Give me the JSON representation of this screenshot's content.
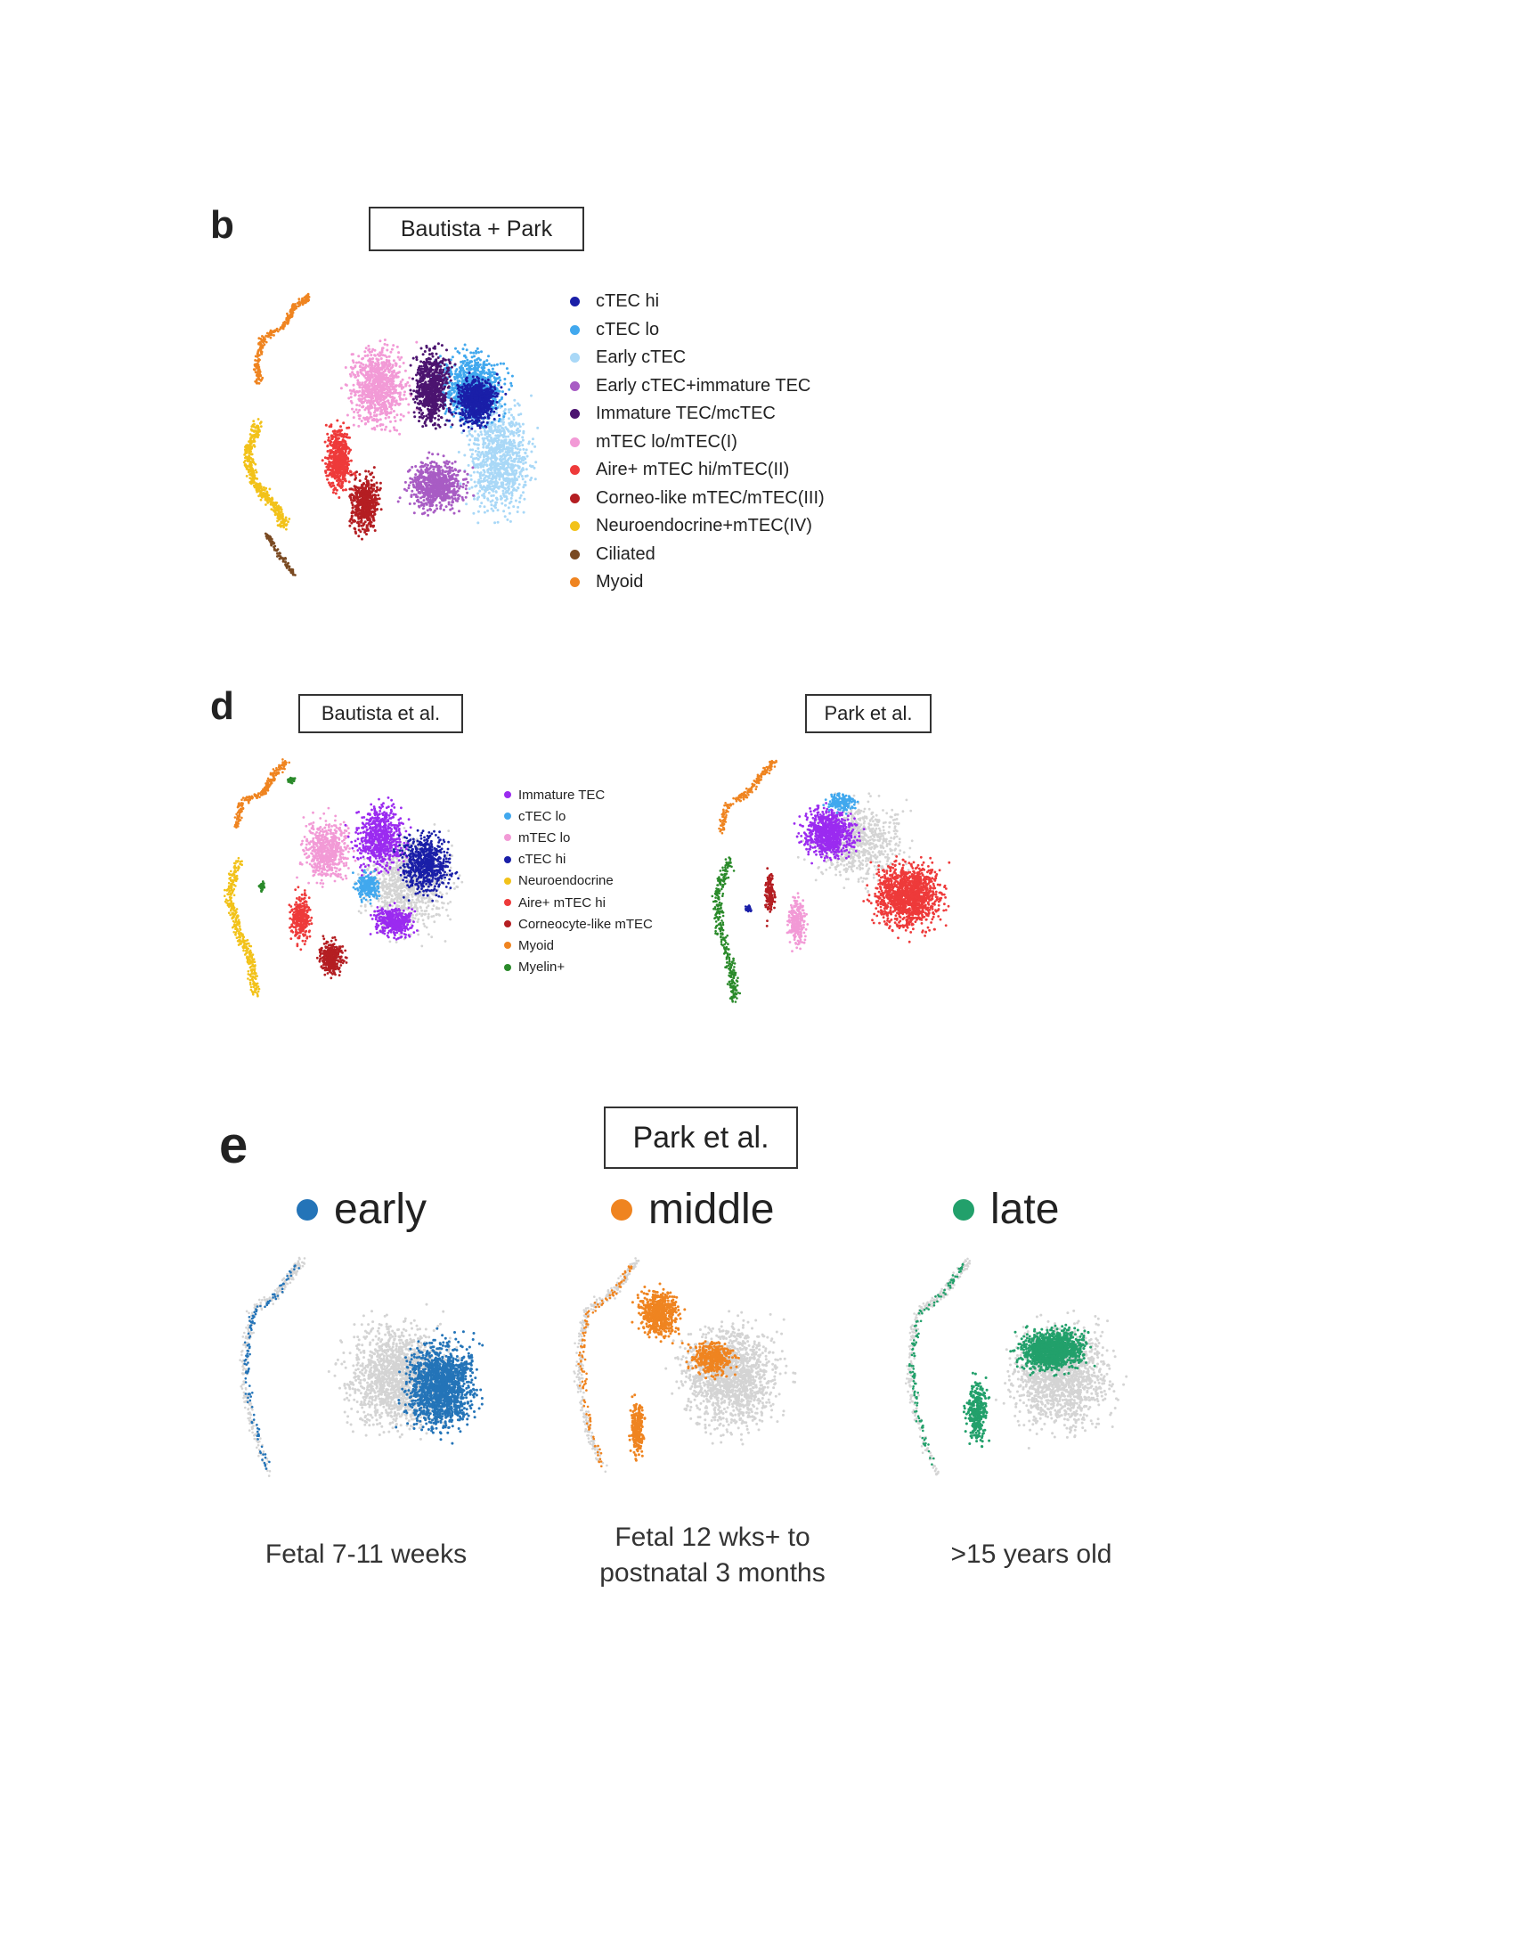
{
  "panel_b": {
    "letter": "b",
    "box_label": "Bautista + Park",
    "legend": [
      {
        "label": "cTEC hi",
        "color": "#1a1fa8"
      },
      {
        "label": "cTEC lo",
        "color": "#41a8ee"
      },
      {
        "label": "Early cTEC",
        "color": "#a9d8f7"
      },
      {
        "label": "Early cTEC+immature TEC",
        "color": "#a85cc4"
      },
      {
        "label": "Immature TEC/mcTEC",
        "color": "#4c1470"
      },
      {
        "label": "mTEC lo/mTEC(I)",
        "color": "#f29ad6"
      },
      {
        "label": "Aire+ mTEC hi/mTEC(II)",
        "color": "#ee3a3a"
      },
      {
        "label": "Corneo-like mTEC/mTEC(III)",
        "color": "#b41e22"
      },
      {
        "label": "Neuroendocrine+mTEC(IV)",
        "color": "#f2c21a"
      },
      {
        "label": "Ciliated",
        "color": "#7a4a22"
      },
      {
        "label": "Myoid",
        "color": "#ef8420"
      }
    ]
  },
  "panel_d": {
    "letter": "d",
    "left_box_label": "Bautista et al.",
    "right_box_label": "Park et al.",
    "legend": [
      {
        "label": "Immature TEC",
        "color": "#9b2bf0"
      },
      {
        "label": "cTEC lo",
        "color": "#41a8ee"
      },
      {
        "label": "mTEC lo",
        "color": "#f29ad6"
      },
      {
        "label": "cTEC hi",
        "color": "#1a1fa8"
      },
      {
        "label": "Neuroendocrine",
        "color": "#f2c21a"
      },
      {
        "label": "Aire+ mTEC hi",
        "color": "#ee3a3a"
      },
      {
        "label": "Corneocyte-like mTEC",
        "color": "#b41e22"
      },
      {
        "label": "Myoid",
        "color": "#ef8420"
      },
      {
        "label": "Myelin+",
        "color": "#2a8a2a"
      }
    ]
  },
  "panel_e": {
    "letter": "e",
    "box_label": "Park et al.",
    "groups": [
      {
        "name": "early",
        "color": "#2474b8",
        "caption_lines": [
          "Fetal 7-11 weeks"
        ]
      },
      {
        "name": "middle",
        "color": "#ef8420",
        "caption_lines": [
          "Fetal 12 wks+ to",
          "postnatal 3 months"
        ]
      },
      {
        "name": "late",
        "color": "#22a06b",
        "caption_lines": [
          ">15 years old"
        ]
      }
    ]
  },
  "colors": {
    "background_cells": "#d4d4d4"
  }
}
